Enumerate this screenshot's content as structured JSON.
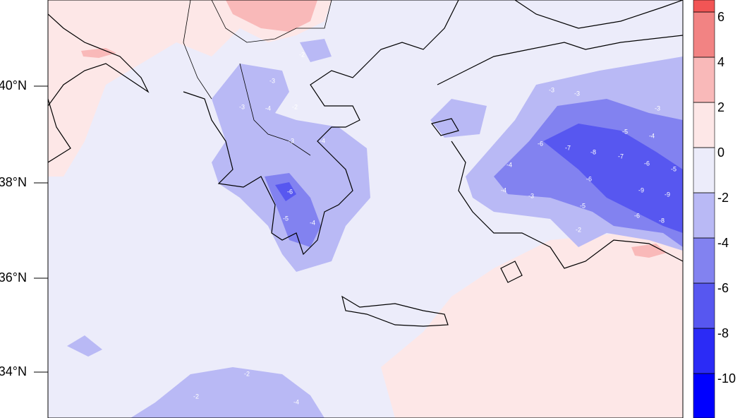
{
  "map": {
    "lat_labels": [
      "40°N",
      "38°N",
      "36°N",
      "34°N"
    ],
    "colorbar": {
      "levels": [
        -10,
        -8,
        -6,
        -4,
        -2,
        0,
        2,
        4,
        6
      ],
      "colors": [
        "#0000ff",
        "#2b2bf6",
        "#5757f0",
        "#8282f0",
        "#b9b9f5",
        "#ececfa",
        "#fde7e7",
        "#f9b9b9",
        "#f28383",
        "#f25555"
      ]
    },
    "contour_labels": [
      -2,
      -3,
      -3,
      -4,
      -2,
      -3,
      -4,
      -5,
      -4,
      -6,
      -7,
      -8,
      -7,
      -6,
      -5,
      -4,
      -6,
      -9,
      -9,
      -8,
      -6,
      -4,
      -3,
      -5,
      -2,
      -3,
      -3,
      -2,
      -2,
      -4,
      -6,
      -5,
      -4,
      -3
    ]
  }
}
